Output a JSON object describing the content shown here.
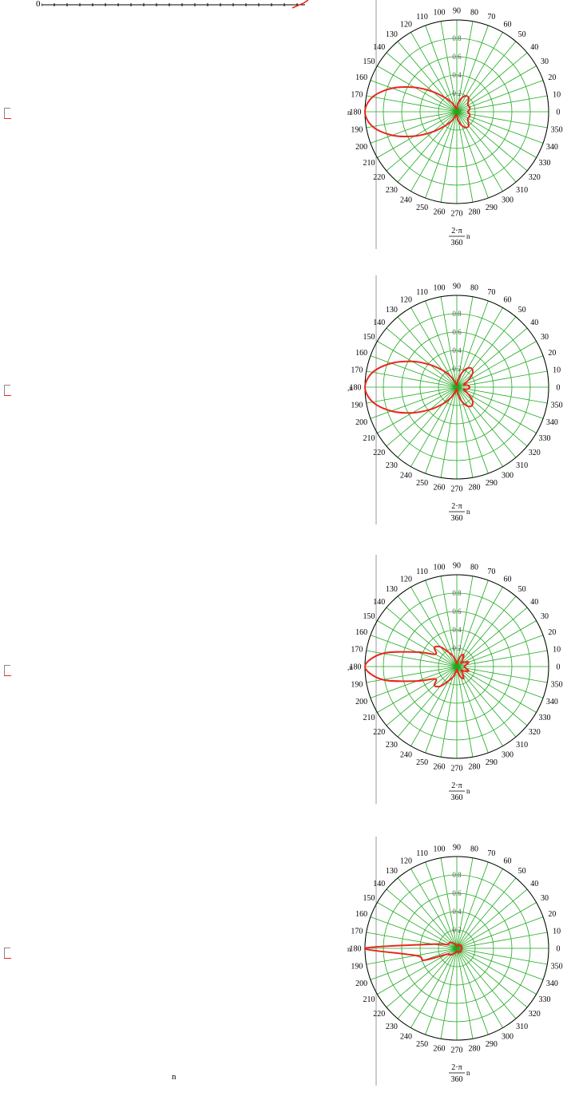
{
  "top_axis": {
    "label": "0"
  },
  "stray_label": "n",
  "chart_data": [
    {
      "type": "polar",
      "angle_ticks_deg": [
        0,
        10,
        20,
        30,
        40,
        50,
        60,
        70,
        80,
        90,
        100,
        110,
        120,
        130,
        140,
        150,
        160,
        170,
        180,
        190,
        200,
        210,
        220,
        230,
        240,
        250,
        260,
        270,
        280,
        290,
        300,
        310,
        320,
        330,
        340,
        350
      ],
      "radial_ticks": [
        "0.2",
        "0.4",
        "0.6",
        "0.8"
      ],
      "rlim": [
        0,
        1
      ],
      "xlabel": {
        "num": "2·π",
        "den": "360",
        "suffix": "n"
      },
      "ylabel_fragment": "n",
      "colors": {
        "curve": "#e8281e",
        "grid": "#1faa1f"
      },
      "series": [
        {
          "theta_deg": [
            0,
            10,
            20,
            30,
            40,
            50,
            60,
            70,
            80,
            90,
            100,
            110,
            120,
            130,
            140,
            150,
            160,
            170,
            180,
            190,
            200,
            210,
            220,
            230,
            240,
            250,
            260,
            270,
            280,
            290,
            300,
            310,
            320,
            330,
            340,
            350
          ],
          "r": [
            0.12,
            0.14,
            0.15,
            0.14,
            0.16,
            0.2,
            0.2,
            0.16,
            0.1,
            0.04,
            0.03,
            0.06,
            0.12,
            0.2,
            0.34,
            0.53,
            0.75,
            0.93,
            1.0,
            0.93,
            0.75,
            0.53,
            0.34,
            0.2,
            0.12,
            0.06,
            0.03,
            0.04,
            0.1,
            0.16,
            0.2,
            0.2,
            0.16,
            0.14,
            0.15,
            0.14
          ]
        }
      ]
    },
    {
      "type": "polar",
      "angle_ticks_deg": [
        0,
        10,
        20,
        30,
        40,
        50,
        60,
        70,
        80,
        90,
        100,
        110,
        120,
        130,
        140,
        150,
        160,
        170,
        180,
        190,
        200,
        210,
        220,
        230,
        240,
        250,
        260,
        270,
        280,
        290,
        300,
        310,
        320,
        330,
        340,
        350
      ],
      "radial_ticks": [
        "0.2",
        "0.4",
        "0.6",
        "0.8"
      ],
      "rlim": [
        0,
        1
      ],
      "xlabel": {
        "num": "2·π",
        "den": "360",
        "suffix": "n"
      },
      "ylabel_fragment": ",n",
      "colors": {
        "curve": "#e8281e",
        "grid": "#1faa1f"
      },
      "series": [
        {
          "theta_deg": [
            0,
            10,
            20,
            30,
            40,
            50,
            60,
            70,
            80,
            90,
            100,
            110,
            120,
            130,
            140,
            150,
            160,
            170,
            180,
            190,
            200,
            210,
            220,
            230,
            240,
            250,
            260,
            270,
            280,
            290,
            300,
            310,
            320,
            330,
            340,
            350
          ],
          "r": [
            0.14,
            0.12,
            0.08,
            0.14,
            0.22,
            0.26,
            0.24,
            0.17,
            0.08,
            0.02,
            0.03,
            0.07,
            0.14,
            0.24,
            0.38,
            0.56,
            0.76,
            0.93,
            1.0,
            0.93,
            0.76,
            0.56,
            0.38,
            0.24,
            0.14,
            0.07,
            0.03,
            0.02,
            0.08,
            0.17,
            0.24,
            0.26,
            0.22,
            0.14,
            0.08,
            0.12
          ]
        }
      ]
    },
    {
      "type": "polar",
      "angle_ticks_deg": [
        0,
        10,
        20,
        30,
        40,
        50,
        60,
        70,
        80,
        90,
        100,
        110,
        120,
        130,
        140,
        150,
        160,
        170,
        180,
        190,
        200,
        210,
        220,
        230,
        240,
        250,
        260,
        270,
        280,
        290,
        300,
        310,
        320,
        330,
        340,
        350
      ],
      "radial_ticks": [
        "0.2",
        "0.4",
        "0.6",
        "0.8"
      ],
      "rlim": [
        0,
        1
      ],
      "xlabel": {
        "num": "2·π",
        "den": "360",
        "suffix": "n"
      },
      "ylabel_fragment": ",n",
      "colors": {
        "curve": "#e8281e",
        "grid": "#1faa1f"
      },
      "series": [
        {
          "theta_deg": [
            0,
            10,
            20,
            30,
            40,
            50,
            60,
            70,
            80,
            90,
            100,
            110,
            120,
            130,
            140,
            150,
            160,
            170,
            180,
            190,
            200,
            210,
            220,
            230,
            240,
            250,
            260,
            270,
            280,
            290,
            300,
            310,
            320,
            330,
            340,
            350
          ],
          "r": [
            0.08,
            0.1,
            0.14,
            0.1,
            0.06,
            0.1,
            0.15,
            0.12,
            0.06,
            0.03,
            0.06,
            0.12,
            0.18,
            0.28,
            0.32,
            0.27,
            0.46,
            0.82,
            1.0,
            0.82,
            0.46,
            0.27,
            0.32,
            0.28,
            0.18,
            0.12,
            0.06,
            0.03,
            0.06,
            0.12,
            0.15,
            0.1,
            0.06,
            0.1,
            0.14,
            0.1
          ]
        }
      ]
    },
    {
      "type": "polar",
      "angle_ticks_deg": [
        0,
        10,
        20,
        30,
        40,
        50,
        60,
        70,
        80,
        90,
        100,
        110,
        120,
        130,
        140,
        150,
        160,
        170,
        180,
        190,
        200,
        210,
        220,
        230,
        240,
        250,
        260,
        270,
        280,
        290,
        300,
        310,
        320,
        330,
        340,
        350
      ],
      "radial_ticks": [
        "0.2",
        "0.4",
        "0.6",
        "0.8"
      ],
      "rlim": [
        0,
        1
      ],
      "xlabel": {
        "num": "2·π",
        "den": "360",
        "suffix": "n"
      },
      "ylabel_fragment": "n",
      "colors": {
        "curve": "#e8281e",
        "grid": "#1faa1f"
      },
      "series": [
        {
          "theta_deg": [
            0,
            10,
            20,
            30,
            40,
            50,
            60,
            70,
            80,
            90,
            100,
            110,
            120,
            130,
            140,
            150,
            160,
            170,
            180,
            190,
            200,
            210,
            220,
            230,
            240,
            250,
            260,
            270,
            280,
            290,
            300,
            310,
            320,
            330,
            340,
            350
          ],
          "r": [
            0.06,
            0.05,
            0.05,
            0.06,
            0.05,
            0.04,
            0.05,
            0.04,
            0.03,
            0.02,
            0.03,
            0.05,
            0.06,
            0.08,
            0.1,
            0.1,
            0.12,
            0.26,
            1.0,
            0.45,
            0.38,
            0.13,
            0.11,
            0.09,
            0.07,
            0.05,
            0.04,
            0.03,
            0.04,
            0.05,
            0.04,
            0.05,
            0.06,
            0.05,
            0.05,
            0.05
          ]
        }
      ]
    }
  ]
}
